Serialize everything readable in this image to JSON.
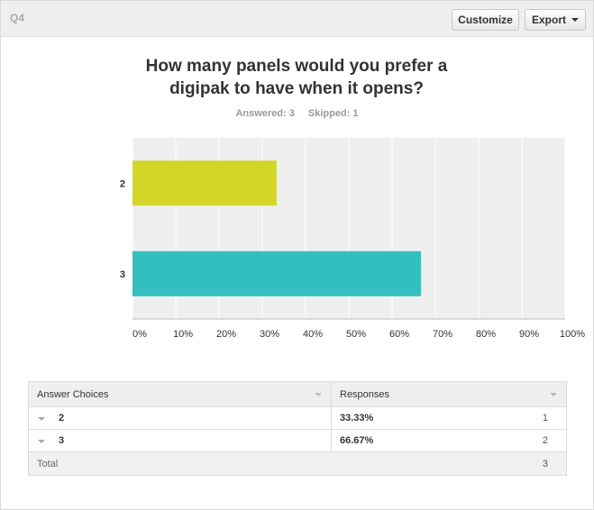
{
  "header": {
    "question_number": "Q4",
    "customize_label": "Customize",
    "export_label": "Export"
  },
  "question": {
    "title_line1": "How many panels would you prefer a",
    "title_line2": "digipak to have when it opens?",
    "answered": "Answered: 3",
    "skipped": "Skipped: 1"
  },
  "chart_data": {
    "type": "bar",
    "orientation": "horizontal",
    "categories": [
      "2",
      "3"
    ],
    "values": [
      33.33,
      66.67
    ],
    "colors": [
      "#d2d629",
      "#33bfbf"
    ],
    "xlim": [
      0,
      100
    ],
    "x_ticks": [
      "0%",
      "10%",
      "20%",
      "30%",
      "40%",
      "50%",
      "60%",
      "70%",
      "80%",
      "90%",
      "100%"
    ],
    "grid": true
  },
  "table": {
    "headers": [
      "Answer Choices",
      "Responses"
    ],
    "rows": [
      {
        "choice": "2",
        "percent": "33.33%",
        "count": "1"
      },
      {
        "choice": "3",
        "percent": "66.67%",
        "count": "2"
      }
    ],
    "total_label": "Total",
    "total_value": "3"
  }
}
